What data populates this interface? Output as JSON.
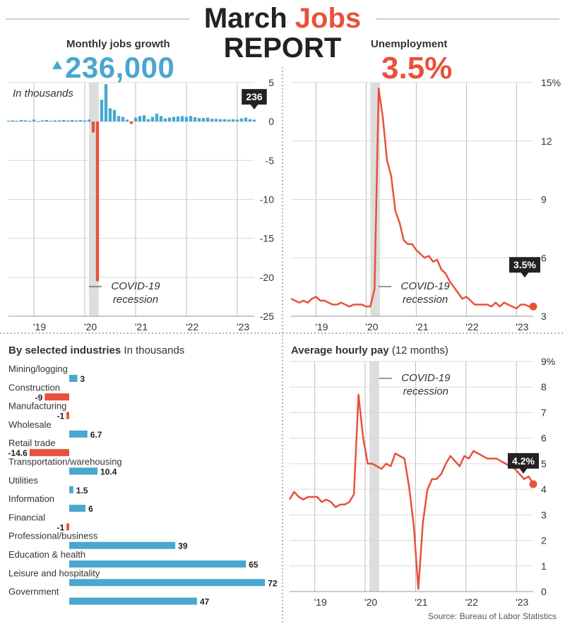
{
  "header": {
    "title_part1": "March ",
    "title_part2": "Jobs",
    "title_line2": "REPORT",
    "jobs_label": "Monthly jobs growth",
    "jobs_value": "236,000",
    "unemp_label": "Unemployment",
    "unemp_value": "3.5%"
  },
  "colors": {
    "blue": "#4aa7cf",
    "red": "#e8513b",
    "dark": "#333333",
    "recession": "#dddddd"
  },
  "footer": {
    "source": "Source: Bureau of Labor Statistics"
  },
  "chart_data": [
    {
      "id": "jobs",
      "type": "bar",
      "title": "Monthly jobs growth",
      "note": "In thousands",
      "ylim": [
        -25,
        5
      ],
      "yticks": [
        "5",
        "0",
        "-5",
        "-10",
        "-15",
        "-20",
        "-25"
      ],
      "xticks": [
        "'19",
        "'20",
        "'21",
        "'22",
        "'23"
      ],
      "recession_label": [
        "COVID-19",
        "recession"
      ],
      "end_label": "236",
      "months_start": "2018-07",
      "values": [
        0.1,
        0.15,
        0.1,
        0.2,
        0.15,
        0.1,
        0.25,
        0.05,
        0.15,
        0.2,
        0.1,
        0.15,
        0.15,
        0.2,
        0.15,
        0.2,
        0.15,
        0.2,
        0.15,
        0.25,
        -1.4,
        -20.5,
        2.8,
        4.8,
        1.7,
        1.5,
        0.7,
        0.6,
        0.25,
        -0.3,
        0.5,
        0.7,
        0.8,
        0.3,
        0.6,
        1.0,
        0.7,
        0.4,
        0.5,
        0.6,
        0.65,
        0.7,
        0.6,
        0.7,
        0.55,
        0.45,
        0.45,
        0.5,
        0.35,
        0.35,
        0.3,
        0.3,
        0.25,
        0.3,
        0.25,
        0.4,
        0.5,
        0.3,
        0.24
      ]
    },
    {
      "id": "unemployment",
      "type": "line",
      "title": "Unemployment",
      "ylim": [
        3,
        15
      ],
      "yticks": [
        "15%",
        "12",
        "9",
        "6",
        "3"
      ],
      "xticks": [
        "'19",
        "'20",
        "'21",
        "'22",
        "'23"
      ],
      "recession_label": [
        "COVID-19",
        "recession"
      ],
      "end_label": "3.5%",
      "months_start": "2018-07",
      "values": [
        3.9,
        3.8,
        3.7,
        3.8,
        3.7,
        3.9,
        4.0,
        3.8,
        3.8,
        3.7,
        3.6,
        3.6,
        3.7,
        3.6,
        3.5,
        3.6,
        3.6,
        3.6,
        3.5,
        3.5,
        4.4,
        14.7,
        13.2,
        11.0,
        10.2,
        8.4,
        7.8,
        6.9,
        6.7,
        6.7,
        6.4,
        6.2,
        6.0,
        6.1,
        5.8,
        5.9,
        5.4,
        5.2,
        4.8,
        4.5,
        4.2,
        3.9,
        4.0,
        3.8,
        3.6,
        3.6,
        3.6,
        3.6,
        3.5,
        3.7,
        3.5,
        3.7,
        3.6,
        3.5,
        3.4,
        3.6,
        3.6,
        3.5,
        3.5
      ]
    },
    {
      "id": "industries",
      "type": "bar",
      "title": "By selected industries",
      "unit": "In thousands",
      "categories": [
        "Mining/logging",
        "Construction",
        "Manufacturing",
        "Wholesale",
        "Retail trade",
        "Transportation/warehousing",
        "Utilities",
        "Information",
        "Financial",
        "Professional/business",
        "Education & health",
        "Leisure and hospitality",
        "Government"
      ],
      "values": [
        3,
        -9,
        -1,
        6.7,
        -14.6,
        10.4,
        1.5,
        6,
        -1,
        39,
        65,
        72,
        47
      ],
      "labels": [
        "3",
        "-9",
        "-1",
        "6.7",
        "-14.6",
        "10.4",
        "1.5",
        "6",
        "-1",
        "39",
        "65",
        "72",
        "47"
      ]
    },
    {
      "id": "hourly_pay",
      "type": "line",
      "title": "Average hourly pay",
      "subtitle": "(12 months)",
      "ylim": [
        0,
        9
      ],
      "yticks": [
        "9%",
        "8",
        "7",
        "6",
        "5",
        "4",
        "3",
        "2",
        "1",
        "0"
      ],
      "xticks": [
        "'19",
        "'20",
        "'21",
        "'22",
        "'23"
      ],
      "recession_label": [
        "COVID-19",
        "recession"
      ],
      "end_label": "4.2%",
      "months_start": "2018-07",
      "values": [
        3.6,
        3.9,
        3.7,
        3.6,
        3.7,
        3.7,
        3.7,
        3.5,
        3.6,
        3.5,
        3.3,
        3.4,
        3.4,
        3.5,
        3.8,
        7.7,
        6.0,
        5.0,
        5.0,
        4.9,
        4.8,
        5.0,
        4.9,
        5.4,
        5.3,
        5.2,
        4.1,
        2.6,
        0.1,
        2.7,
        4.0,
        4.4,
        4.4,
        4.6,
        5.0,
        5.3,
        5.1,
        4.9,
        5.3,
        5.2,
        5.5,
        5.4,
        5.3,
        5.2,
        5.2,
        5.2,
        5.1,
        5.0,
        4.9,
        4.8,
        4.6,
        4.4,
        4.5,
        4.2
      ]
    }
  ]
}
